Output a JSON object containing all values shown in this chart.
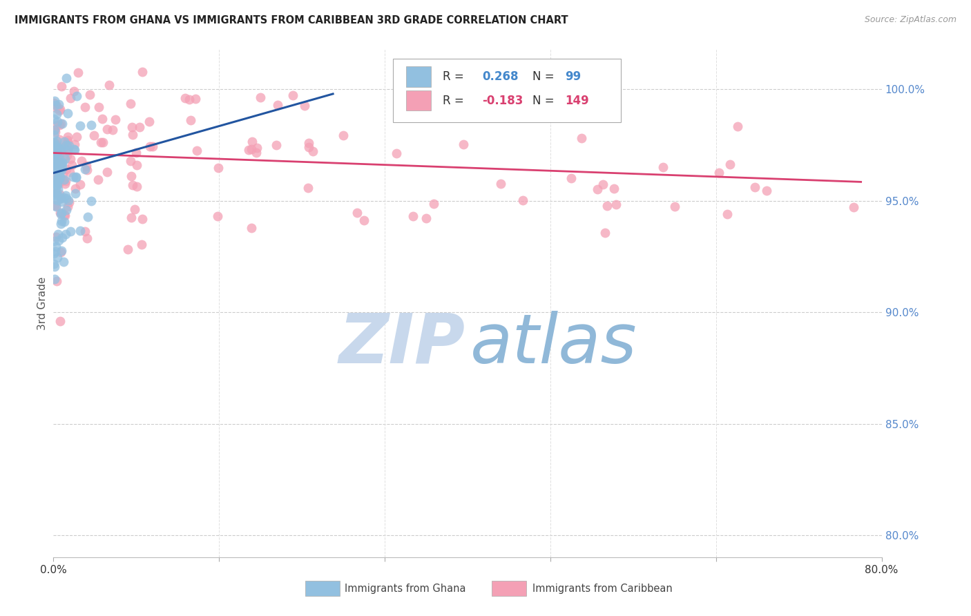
{
  "title": "IMMIGRANTS FROM GHANA VS IMMIGRANTS FROM CARIBBEAN 3RD GRADE CORRELATION CHART",
  "source": "Source: ZipAtlas.com",
  "ylabel": "3rd Grade",
  "ghana_R": 0.268,
  "ghana_N": 99,
  "caribbean_R": -0.183,
  "caribbean_N": 149,
  "ghana_color": "#92c0e0",
  "ghana_line_color": "#2255a0",
  "caribbean_color": "#f4a0b5",
  "caribbean_line_color": "#d94070",
  "legend_label_ghana": "Immigrants from Ghana",
  "legend_label_caribbean": "Immigrants from Caribbean",
  "watermark_zip_color": "#c8d8ec",
  "watermark_atlas_color": "#90b8d8",
  "background_color": "#ffffff",
  "grid_color": "#cccccc",
  "xlim": [
    0.0,
    0.8
  ],
  "ylim": [
    0.79,
    1.018
  ],
  "yticks": [
    1.0,
    0.95,
    0.9,
    0.85,
    0.8
  ],
  "ytick_labels": [
    "100.0%",
    "95.0%",
    "90.0%",
    "85.0%",
    "80.0%"
  ],
  "xtick_labels_show": [
    "0.0%",
    "80.0%"
  ],
  "blue_line_x": [
    0.0,
    0.27
  ],
  "blue_line_y": [
    0.9625,
    0.998
  ],
  "pink_line_x": [
    0.0,
    0.78
  ],
  "pink_line_y": [
    0.9715,
    0.9585
  ]
}
